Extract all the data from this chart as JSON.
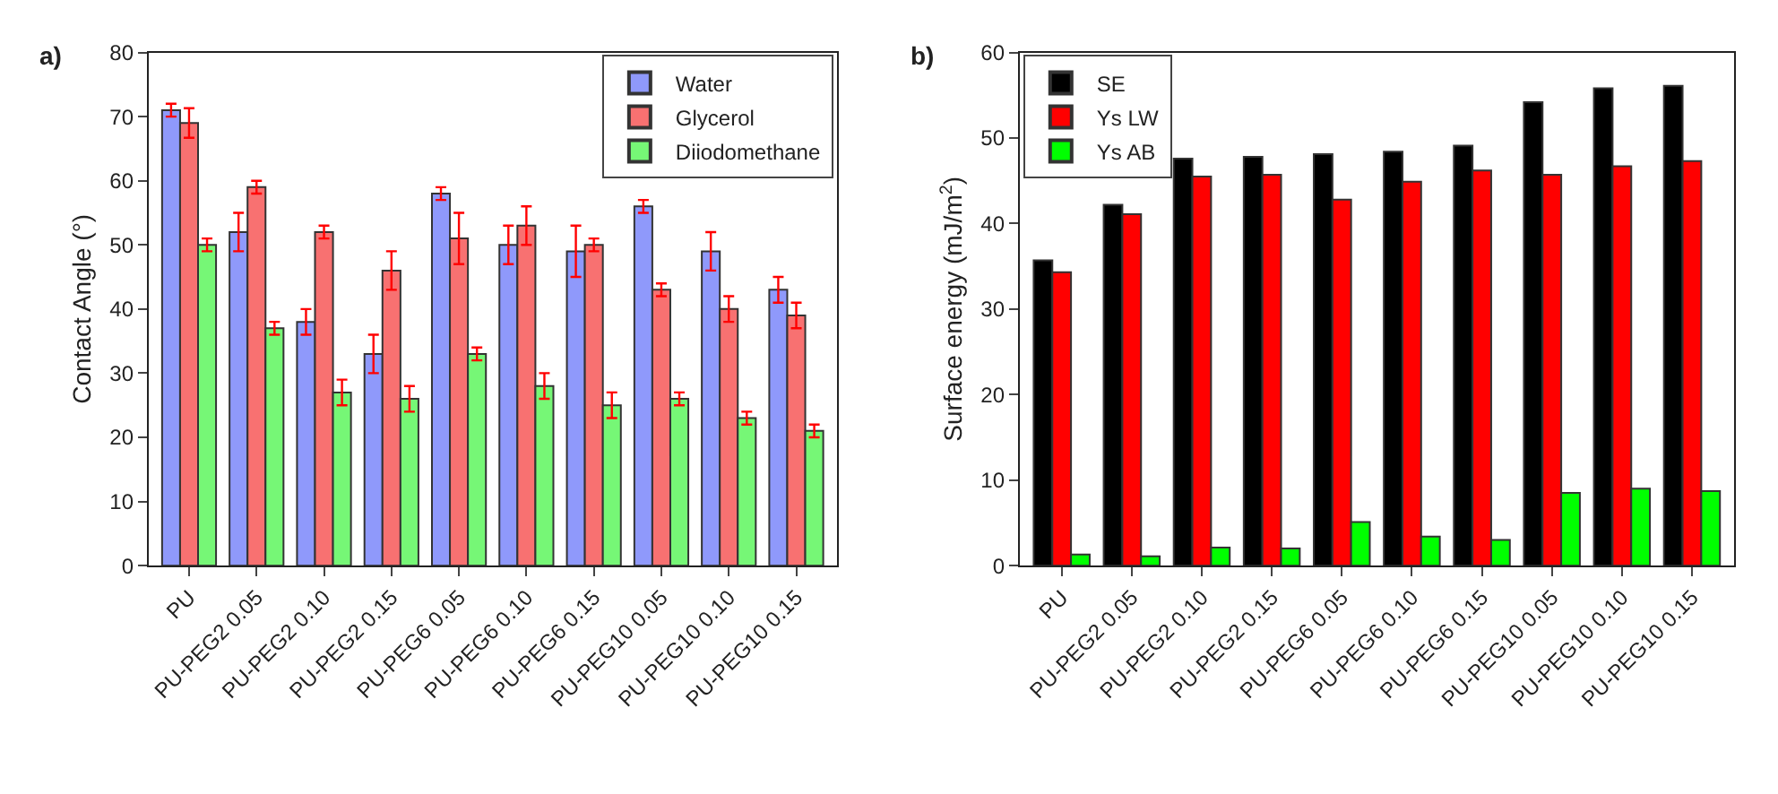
{
  "chart_data": [
    {
      "type": "bar",
      "title": "a)",
      "ylabel": "Contact Angle (°)",
      "categories": [
        "PU",
        "PU-PEG2 0.05",
        "PU-PEG2 0.10",
        "PU-PEG2 0.15",
        "PU-PEG6 0.05",
        "PU-PEG6 0.10",
        "PU-PEG6 0.15",
        "PU-PEG10 0.05",
        "PU-PEG10 0.10",
        "PU-PEG10 0.15"
      ],
      "series": [
        {
          "name": "Water",
          "color": "#8f99fb",
          "values": [
            71,
            52,
            38,
            33,
            58,
            50,
            49,
            56,
            49,
            43
          ],
          "errors": [
            1,
            3,
            2,
            3,
            1,
            3,
            4,
            1,
            3,
            2
          ]
        },
        {
          "name": "Glycerol",
          "color": "#f87171",
          "values": [
            69,
            59,
            52,
            46,
            51,
            53,
            50,
            43,
            40,
            39
          ],
          "errors": [
            2.3,
            1,
            1,
            3,
            4,
            3,
            1,
            1,
            2,
            2
          ]
        },
        {
          "name": "Diiodomethane",
          "color": "#76f776",
          "values": [
            50,
            37,
            27,
            26,
            33,
            28,
            25,
            26,
            23,
            21
          ],
          "errors": [
            1,
            1,
            2,
            2,
            1,
            2,
            2,
            1,
            1,
            1
          ]
        }
      ],
      "ylim": [
        0,
        80
      ],
      "yticks": [
        0,
        10,
        20,
        30,
        40,
        50,
        60,
        70,
        80
      ],
      "legend": "top right"
    },
    {
      "type": "bar",
      "title": "b)",
      "ylabel": "Surface energy (mJ/m$^{2}$)",
      "categories": [
        "PU",
        "PU-PEG2 0.05",
        "PU-PEG2 0.10",
        "PU-PEG2 0.15",
        "PU-PEG6 0.05",
        "PU-PEG6 0.10",
        "PU-PEG6 0.15",
        "PU-PEG10 0.05",
        "PU-PEG10 0.10",
        "PU-PEG10 0.15"
      ],
      "series": [
        {
          "name": "SE",
          "color": "#000000",
          "values": [
            35.7,
            42.2,
            47.6,
            47.8,
            48.1,
            48.4,
            49.1,
            54.2,
            55.8,
            56.1
          ]
        },
        {
          "name": "Ys LW",
          "color": "#ff0000",
          "values": [
            34.3,
            41.1,
            45.5,
            45.7,
            42.8,
            44.9,
            46.2,
            45.7,
            46.7,
            47.3
          ]
        },
        {
          "name": "Ys AB",
          "color": "#00ff00",
          "values": [
            1.3,
            1.1,
            2.1,
            2.0,
            5.1,
            3.4,
            3.0,
            8.5,
            9.0,
            8.7
          ]
        }
      ],
      "ylim": [
        0,
        60
      ],
      "yticks": [
        0,
        10,
        20,
        30,
        40,
        50,
        60
      ],
      "legend": "top left"
    }
  ]
}
